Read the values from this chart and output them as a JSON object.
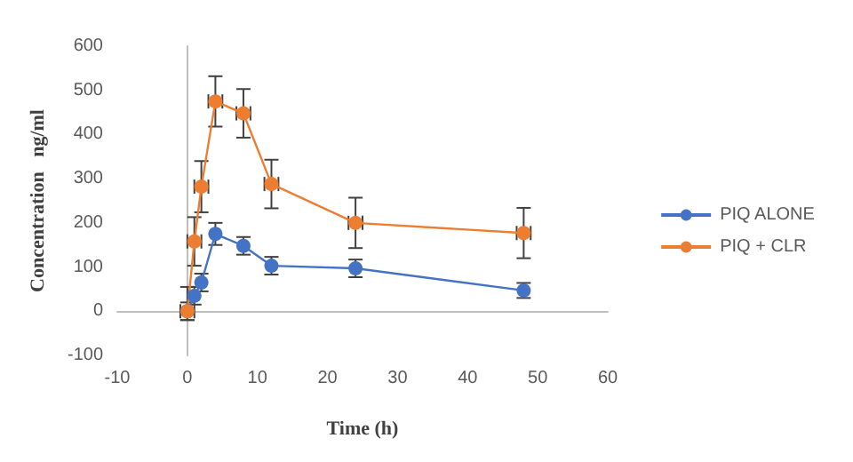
{
  "chart_data": {
    "type": "line",
    "xlabel": "Time (h)",
    "ylabel": "Concentration   ng/ml",
    "x": [
      0,
      1,
      2,
      4,
      8,
      12,
      24,
      48
    ],
    "series": [
      {
        "name": "PIQ ALONE",
        "color": "#4472c4",
        "values": [
          0,
          35,
          65,
          175,
          148,
          103,
          97,
          47
        ],
        "errors": [
          20,
          20,
          20,
          25,
          20,
          20,
          20,
          17
        ]
      },
      {
        "name": "PIQ + CLR",
        "color": "#ed7d31",
        "values": [
          0,
          158,
          282,
          475,
          448,
          288,
          200,
          177
        ],
        "errors": [
          [
            -20,
            55
          ],
          55,
          58,
          57,
          55,
          55,
          57,
          57
        ],
        "xerrors": [
          1,
          1,
          1,
          1,
          1,
          1,
          1,
          1
        ]
      }
    ],
    "xlim": [
      -10,
      60
    ],
    "xticks": [
      -10,
      0,
      10,
      20,
      30,
      40,
      50,
      60
    ],
    "ylim": [
      -100,
      600
    ],
    "yticks": [
      -100,
      0,
      100,
      200,
      300,
      400,
      500,
      600
    ],
    "legend": "right",
    "marker": "circle",
    "line_style": "solid"
  }
}
